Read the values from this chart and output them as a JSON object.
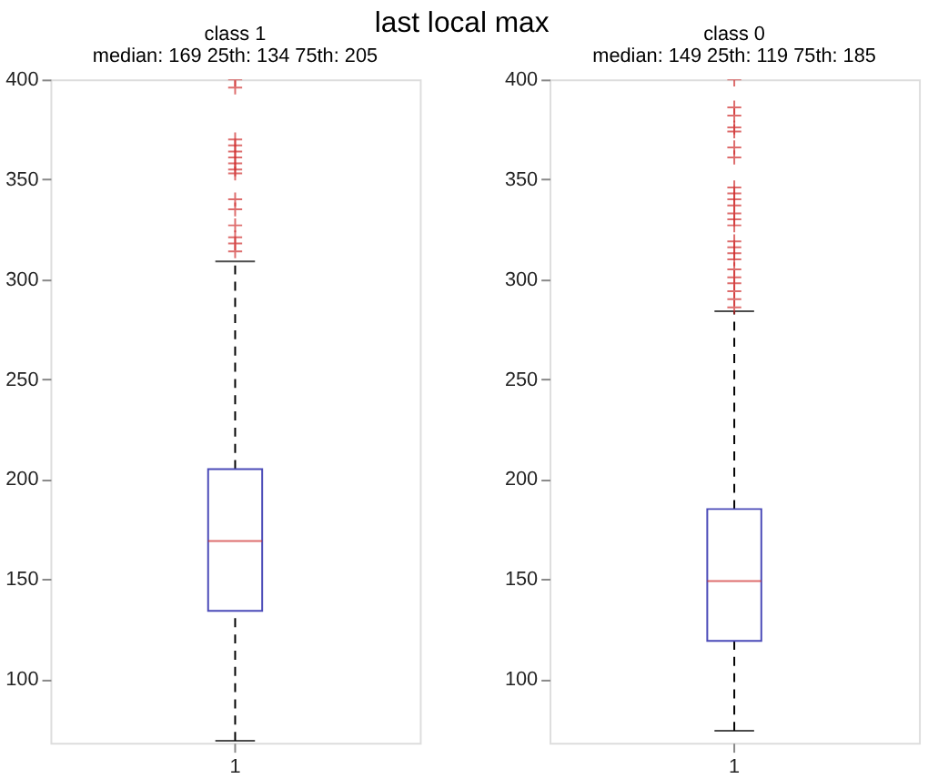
{
  "chart_data": [
    {
      "type": "box",
      "title": "class 1",
      "subtitle": "median: 169  25th: 134  75th: 205",
      "annotations": [
        "last local max"
      ],
      "categories": [
        "1"
      ],
      "series": [
        {
          "color": "#4a4ab8",
          "boxes": [
            {
              "low": 69,
              "q1": 134,
              "median": 169,
              "q3": 205,
              "high": 309,
              "outliers": [
                400,
                396,
                370,
                367,
                364,
                361,
                358,
                355,
                353,
                340,
                335,
                327,
                321,
                318,
                314
              ]
            }
          ]
        }
      ],
      "ylim": [
        68,
        400
      ],
      "yticks": [
        100,
        150,
        200,
        250,
        300,
        350,
        400
      ],
      "grid": false,
      "marker": "cross"
    },
    {
      "type": "box",
      "title": "class 0",
      "subtitle": "median: 149  25th: 119  75th: 185",
      "categories": [
        "1"
      ],
      "series": [
        {
          "color": "#4a4ab8",
          "boxes": [
            {
              "low": 74,
              "q1": 119,
              "median": 149,
              "q3": 185,
              "high": 284,
              "outliers": [
                400,
                386,
                382,
                376,
                374,
                366,
                361,
                346,
                343,
                340,
                337,
                333,
                330,
                327,
                319,
                316,
                313,
                310,
                305,
                301,
                298,
                294,
                290,
                286
              ]
            }
          ]
        }
      ],
      "ylim": [
        68,
        400
      ],
      "yticks": [
        100,
        150,
        200,
        250,
        300,
        350,
        400
      ],
      "grid": false,
      "marker": "cross"
    }
  ]
}
